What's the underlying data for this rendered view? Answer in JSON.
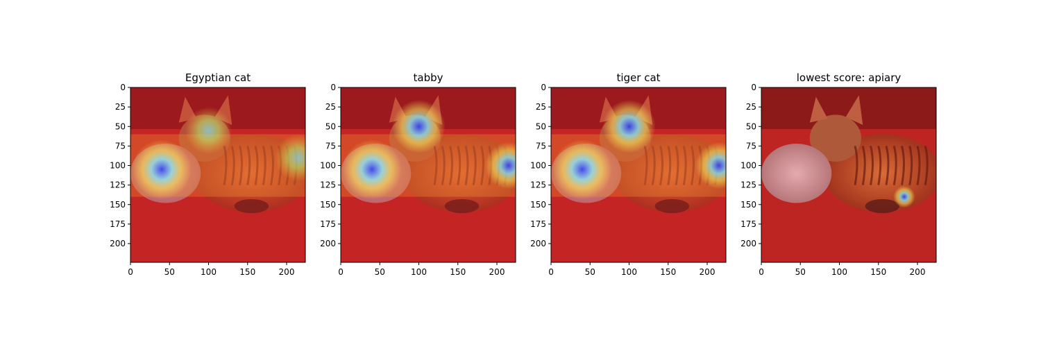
{
  "chart_data": {
    "type": "heatmap",
    "description_kind": "Grad-CAM style heatmap overlays on a photo of two cats lying on a red patterned bedspread",
    "x_range": [
      0,
      224
    ],
    "y_range": [
      0,
      224
    ],
    "xticks": [
      0,
      50,
      100,
      150,
      200
    ],
    "yticks": [
      0,
      25,
      50,
      75,
      100,
      125,
      150,
      175,
      200
    ],
    "panels": [
      {
        "title": "Egyptian cat",
        "hotspots": [
          {
            "x": 40,
            "y": 105,
            "r": 38,
            "level": "high"
          },
          {
            "x": 100,
            "y": 55,
            "r": 30,
            "level": "medium"
          },
          {
            "x": 215,
            "y": 90,
            "r": 30,
            "level": "medium"
          }
        ]
      },
      {
        "title": "tabby",
        "hotspots": [
          {
            "x": 40,
            "y": 105,
            "r": 38,
            "level": "high"
          },
          {
            "x": 100,
            "y": 50,
            "r": 34,
            "level": "high"
          },
          {
            "x": 215,
            "y": 100,
            "r": 30,
            "level": "high"
          }
        ]
      },
      {
        "title": "tiger cat",
        "hotspots": [
          {
            "x": 40,
            "y": 105,
            "r": 38,
            "level": "high"
          },
          {
            "x": 100,
            "y": 50,
            "r": 34,
            "level": "high"
          },
          {
            "x": 215,
            "y": 100,
            "r": 30,
            "level": "high"
          }
        ]
      },
      {
        "title": "lowest score: apiary",
        "hotspots": [
          {
            "x": 183,
            "y": 140,
            "r": 14,
            "level": "high"
          }
        ]
      }
    ],
    "colors": {
      "overlay_warm": "#e0202a",
      "overlay_hot": "#2a3cff",
      "cyan": "#7fe8ff",
      "bed": "#b02820",
      "cat_fur": "#c87838",
      "grey_cat": "#c8c0c0"
    }
  }
}
